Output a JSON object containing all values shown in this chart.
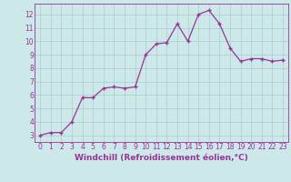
{
  "xlabel": "Windchill (Refroidissement éolien,°C)",
  "x": [
    0,
    1,
    2,
    3,
    4,
    5,
    6,
    7,
    8,
    9,
    10,
    11,
    12,
    13,
    14,
    15,
    16,
    17,
    18,
    19,
    20,
    21,
    22,
    23
  ],
  "y": [
    3.0,
    3.2,
    3.2,
    4.0,
    5.8,
    5.8,
    6.5,
    6.6,
    6.5,
    6.6,
    9.0,
    9.8,
    9.9,
    11.3,
    10.0,
    12.0,
    12.3,
    11.3,
    9.5,
    8.5,
    8.7,
    8.7,
    8.5,
    8.6
  ],
  "line_color": "#993399",
  "marker": "+",
  "marker_size": 3,
  "bg_color": "#cce8e8",
  "grid_color": "#aacccc",
  "tick_color": "#993399",
  "label_color": "#993399",
  "xlim": [
    -0.5,
    23.5
  ],
  "ylim": [
    2.5,
    12.8
  ],
  "yticks": [
    3,
    4,
    5,
    6,
    7,
    8,
    9,
    10,
    11,
    12
  ],
  "xticks": [
    0,
    1,
    2,
    3,
    4,
    5,
    6,
    7,
    8,
    9,
    10,
    11,
    12,
    13,
    14,
    15,
    16,
    17,
    18,
    19,
    20,
    21,
    22,
    23
  ],
  "tick_fontsize": 5.5,
  "xlabel_fontsize": 6.5,
  "linewidth": 0.9,
  "markeredgewidth": 1.0
}
